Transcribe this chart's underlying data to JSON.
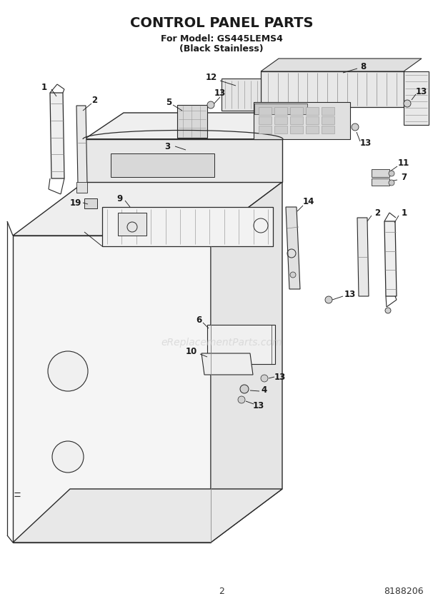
{
  "title": "CONTROL PANEL PARTS",
  "subtitle1": "For Model: GS445LEMS4",
  "subtitle2": "(Black Stainless)",
  "page_number": "2",
  "part_number": "8188206",
  "watermark": "eReplacementParts.com",
  "bg": "#ffffff",
  "lc": "#2a2a2a",
  "fig_w": 6.2,
  "fig_h": 8.56,
  "dpi": 100
}
